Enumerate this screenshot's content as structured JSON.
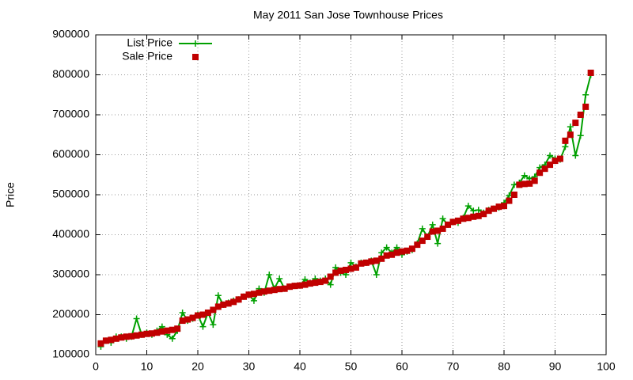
{
  "chart_data": {
    "type": "line",
    "title": "May 2011 San Jose Townhouse Prices",
    "y_label": "Price",
    "x": [
      1,
      2,
      3,
      4,
      5,
      6,
      7,
      8,
      9,
      10,
      11,
      12,
      13,
      14,
      15,
      16,
      17,
      18,
      19,
      20,
      21,
      22,
      23,
      24,
      25,
      26,
      27,
      28,
      29,
      30,
      31,
      32,
      33,
      34,
      35,
      36,
      37,
      38,
      39,
      40,
      41,
      42,
      43,
      44,
      45,
      46,
      47,
      48,
      49,
      50,
      51,
      52,
      53,
      54,
      55,
      56,
      57,
      58,
      59,
      60,
      61,
      62,
      63,
      64,
      65,
      66,
      67,
      68,
      69,
      70,
      71,
      72,
      73,
      74,
      75,
      76,
      77,
      78,
      79,
      80,
      81,
      82,
      83,
      84,
      85,
      86,
      87,
      88,
      89,
      90,
      91,
      92,
      93,
      94,
      95,
      96,
      97
    ],
    "series": [
      {
        "name": "List Price",
        "color": "#00a000",
        "style": "linespoints",
        "values": [
          120000,
          135000,
          130000,
          145000,
          145000,
          140000,
          145000,
          190000,
          150000,
          155000,
          150000,
          160000,
          170000,
          150000,
          140000,
          160000,
          205000,
          185000,
          190000,
          200000,
          170000,
          205000,
          175000,
          248000,
          225000,
          230000,
          235000,
          238000,
          245000,
          250000,
          235000,
          265000,
          255000,
          300000,
          265000,
          290000,
          265000,
          270000,
          272000,
          273000,
          288000,
          280000,
          290000,
          285000,
          290000,
          275000,
          318000,
          305000,
          300000,
          330000,
          320000,
          330000,
          330000,
          335000,
          300000,
          355000,
          368000,
          355000,
          368000,
          350000,
          358000,
          362000,
          378000,
          415000,
          395000,
          425000,
          378000,
          440000,
          425000,
          432000,
          430000,
          442000,
          472000,
          460000,
          462000,
          455000,
          462000,
          465000,
          468000,
          480000,
          498000,
          525000,
          530000,
          548000,
          540000,
          545000,
          568000,
          575000,
          598000,
          590000,
          588000,
          620000,
          670000,
          598000,
          648000,
          750000,
          800000
        ]
      },
      {
        "name": "Sale Price",
        "color": "#c00000",
        "style": "points",
        "values": [
          128000,
          135000,
          137000,
          140000,
          143000,
          145000,
          146000,
          148000,
          150000,
          152000,
          153000,
          155000,
          158000,
          160000,
          162000,
          165000,
          185000,
          188000,
          192000,
          198000,
          200000,
          205000,
          212000,
          220000,
          225000,
          228000,
          232000,
          238000,
          245000,
          250000,
          252000,
          255000,
          258000,
          260000,
          262000,
          264000,
          265000,
          270000,
          272000,
          273000,
          275000,
          278000,
          280000,
          282000,
          285000,
          295000,
          305000,
          310000,
          312000,
          315000,
          318000,
          328000,
          330000,
          333000,
          335000,
          340000,
          348000,
          350000,
          355000,
          358000,
          360000,
          365000,
          375000,
          385000,
          395000,
          408000,
          410000,
          415000,
          425000,
          432000,
          435000,
          440000,
          442000,
          445000,
          447000,
          452000,
          460000,
          465000,
          470000,
          472000,
          485000,
          500000,
          525000,
          527000,
          528000,
          535000,
          555000,
          565000,
          575000,
          585000,
          590000,
          635000,
          650000,
          680000,
          700000,
          720000,
          805000
        ]
      }
    ],
    "xlim": [
      0,
      100
    ],
    "xticks": [
      0,
      10,
      20,
      30,
      40,
      50,
      60,
      70,
      80,
      90,
      100
    ],
    "ylim": [
      100000,
      900000
    ],
    "yticks": [
      100000,
      200000,
      300000,
      400000,
      500000,
      600000,
      700000,
      800000,
      900000
    ],
    "grid": true,
    "legend": "top-left"
  }
}
